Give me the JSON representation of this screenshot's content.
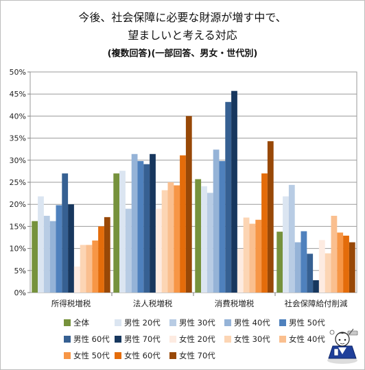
{
  "chart_data": {
    "type": "bar",
    "title_line1": "今後、社会保障に必要な財源が増す中で、",
    "title_line2": "望ましいと考える対応",
    "subtitle": "(複数回答)(一部回答、男女・世代別)",
    "categories": [
      "所得税増税",
      "法人税増税",
      "消費税増税",
      "社会保障給付削減"
    ],
    "ylim": [
      0,
      50
    ],
    "y_ticks": [
      "0%",
      "5%",
      "10%",
      "15%",
      "20%",
      "25%",
      "30%",
      "35%",
      "40%",
      "45%",
      "50%"
    ],
    "grid": true,
    "legend_position": "bottom",
    "series": [
      {
        "name": "全体",
        "color": "#76923c",
        "values": [
          16.2,
          27.0,
          25.7,
          13.8
        ]
      },
      {
        "name": "男性 20代",
        "color": "#dbe5f1",
        "values": [
          21.8,
          27.6,
          24.1,
          21.8
        ]
      },
      {
        "name": "男性 30代",
        "color": "#b8cce4",
        "values": [
          17.4,
          19.0,
          22.6,
          24.4
        ]
      },
      {
        "name": "男性 40代",
        "color": "#95b3d7",
        "values": [
          16.2,
          31.4,
          32.4,
          11.4
        ]
      },
      {
        "name": "男性 50代",
        "color": "#4f81bd",
        "values": [
          19.8,
          29.8,
          29.8,
          13.9
        ]
      },
      {
        "name": "男性 60代",
        "color": "#366092",
        "values": [
          27.0,
          29.1,
          43.2,
          8.8
        ]
      },
      {
        "name": "男性 70代",
        "color": "#17375e",
        "values": [
          20.0,
          31.4,
          45.7,
          2.8
        ]
      },
      {
        "name": "女性 20代",
        "color": "#fdebe1",
        "values": [
          5.9,
          19.0,
          9.9,
          11.9
        ]
      },
      {
        "name": "女性 30代",
        "color": "#fcd5b4",
        "values": [
          10.8,
          23.2,
          17.0,
          8.9
        ]
      },
      {
        "name": "女性 40代",
        "color": "#fabf8f",
        "values": [
          10.8,
          25.0,
          15.6,
          17.4
        ]
      },
      {
        "name": "女性 50代",
        "color": "#f79646",
        "values": [
          11.8,
          24.3,
          16.5,
          13.6
        ]
      },
      {
        "name": "女性 60代",
        "color": "#e46c0a",
        "values": [
          15.0,
          31.1,
          27.0,
          12.9
        ]
      },
      {
        "name": "女性 70代",
        "color": "#984807",
        "values": [
          17.1,
          40.0,
          34.3,
          11.4
        ]
      }
    ]
  }
}
